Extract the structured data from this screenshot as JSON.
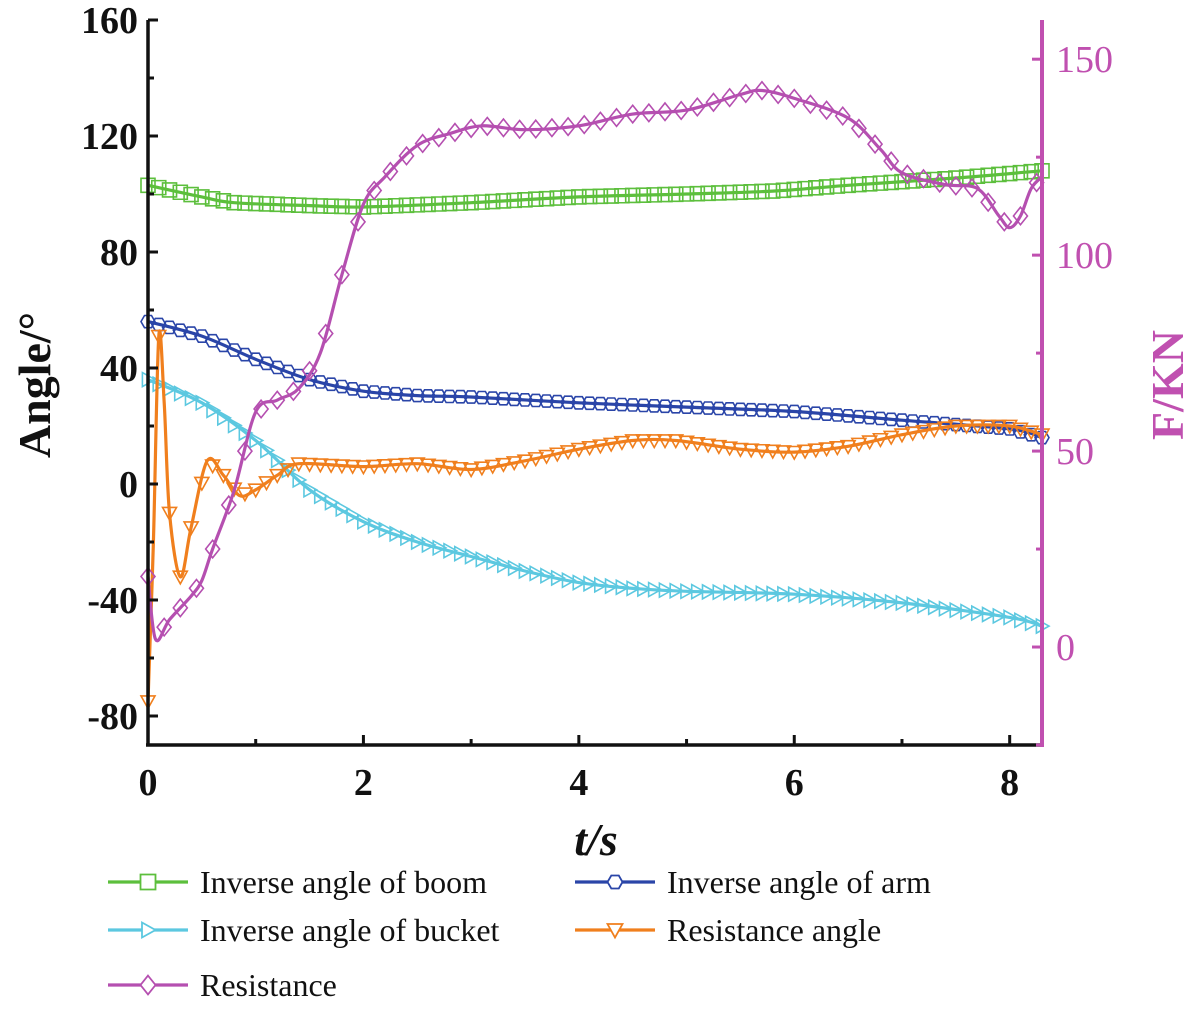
{
  "chart_data": {
    "type": "line",
    "xlabel": "t/s",
    "ylabel_left": "Angle/°",
    "ylabel_right": "F/KN",
    "xlim": [
      0,
      8.3
    ],
    "ylim_left": [
      -90,
      160
    ],
    "ylim_right": [
      -25,
      160
    ],
    "x_ticks": [
      0,
      2,
      4,
      6,
      8
    ],
    "y_ticks_left": [
      160,
      120,
      80,
      40,
      0,
      -40,
      -80
    ],
    "y_ticks_right": [
      150,
      100,
      50,
      0
    ],
    "grid": false,
    "legend_position": "bottom",
    "series": [
      {
        "name": "Inverse angle of boom",
        "axis": "left",
        "color": "#5cbf3c",
        "marker": "square",
        "points": [
          [
            0.0,
            103
          ],
          [
            0.5,
            99
          ],
          [
            0.8,
            97
          ],
          [
            1.5,
            96
          ],
          [
            2.0,
            95.5
          ],
          [
            3.0,
            97
          ],
          [
            4.0,
            99
          ],
          [
            5.0,
            100
          ],
          [
            5.8,
            101
          ],
          [
            6.5,
            103
          ],
          [
            7.5,
            105.5
          ],
          [
            8.3,
            108
          ]
        ]
      },
      {
        "name": "Inverse angle of arm",
        "axis": "left",
        "color": "#2a45a8",
        "marker": "hexagon",
        "points": [
          [
            0.0,
            56
          ],
          [
            0.5,
            51
          ],
          [
            1.0,
            43
          ],
          [
            1.5,
            36
          ],
          [
            2.0,
            32
          ],
          [
            2.5,
            30.5
          ],
          [
            3.0,
            30
          ],
          [
            4.0,
            28
          ],
          [
            5.0,
            26.5
          ],
          [
            6.0,
            25
          ],
          [
            7.0,
            22
          ],
          [
            8.0,
            19
          ],
          [
            8.3,
            16
          ]
        ]
      },
      {
        "name": "Inverse angle of bucket",
        "axis": "left",
        "color": "#5cc8e0",
        "marker": "triangle-right",
        "points": [
          [
            0.0,
            36
          ],
          [
            0.5,
            28
          ],
          [
            1.0,
            15
          ],
          [
            1.5,
            -2
          ],
          [
            2.0,
            -13
          ],
          [
            2.5,
            -20
          ],
          [
            3.0,
            -25
          ],
          [
            3.5,
            -30
          ],
          [
            4.0,
            -34
          ],
          [
            4.5,
            -36
          ],
          [
            5.0,
            -37
          ],
          [
            6.0,
            -38
          ],
          [
            7.0,
            -41
          ],
          [
            8.0,
            -46
          ],
          [
            8.3,
            -49
          ]
        ]
      },
      {
        "name": "Resistance angle",
        "axis": "left",
        "color": "#f07f1d",
        "marker": "triangle-down",
        "points": [
          [
            0.0,
            -75
          ],
          [
            0.05,
            -20
          ],
          [
            0.1,
            51
          ],
          [
            0.15,
            28
          ],
          [
            0.2,
            -10
          ],
          [
            0.3,
            -32
          ],
          [
            0.4,
            -15
          ],
          [
            0.55,
            8
          ],
          [
            0.7,
            3
          ],
          [
            0.85,
            -4
          ],
          [
            1.0,
            -2
          ],
          [
            1.2,
            3
          ],
          [
            1.4,
            7
          ],
          [
            2.0,
            6
          ],
          [
            2.5,
            7
          ],
          [
            3.0,
            5
          ],
          [
            3.5,
            8
          ],
          [
            4.0,
            12
          ],
          [
            4.5,
            15
          ],
          [
            4.9,
            15
          ],
          [
            5.5,
            12
          ],
          [
            6.0,
            11
          ],
          [
            6.5,
            13
          ],
          [
            7.0,
            17
          ],
          [
            7.5,
            20
          ],
          [
            8.0,
            20
          ],
          [
            8.3,
            17
          ]
        ]
      },
      {
        "name": "Resistance",
        "axis": "right",
        "color": "#b54fb0",
        "marker": "diamond",
        "points": [
          [
            0.0,
            18
          ],
          [
            0.07,
            2
          ],
          [
            0.2,
            7
          ],
          [
            0.4,
            13
          ],
          [
            0.5,
            17
          ],
          [
            0.6,
            25
          ],
          [
            0.8,
            40
          ],
          [
            1.0,
            60
          ],
          [
            1.2,
            63
          ],
          [
            1.4,
            66
          ],
          [
            1.6,
            75
          ],
          [
            1.8,
            95
          ],
          [
            2.0,
            113
          ],
          [
            2.2,
            120
          ],
          [
            2.5,
            128
          ],
          [
            2.8,
            131
          ],
          [
            3.1,
            133
          ],
          [
            3.5,
            132
          ],
          [
            4.0,
            133
          ],
          [
            4.5,
            136
          ],
          [
            5.0,
            137
          ],
          [
            5.5,
            141
          ],
          [
            5.7,
            142
          ],
          [
            6.0,
            140
          ],
          [
            6.5,
            135
          ],
          [
            6.8,
            127
          ],
          [
            7.0,
            121
          ],
          [
            7.4,
            118
          ],
          [
            7.7,
            117
          ],
          [
            7.9,
            110
          ],
          [
            8.0,
            107
          ],
          [
            8.1,
            110
          ],
          [
            8.2,
            117
          ],
          [
            8.3,
            120
          ]
        ]
      }
    ]
  }
}
